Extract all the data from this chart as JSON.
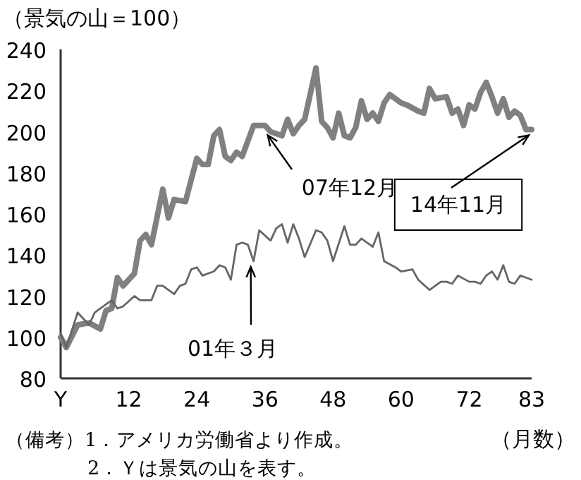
{
  "chart_data": {
    "type": "line",
    "ylabel": "（景気の山＝100）",
    "xlabel": "（月数）",
    "xlim": [
      0,
      83
    ],
    "ylim": [
      80,
      240
    ],
    "xticks": [
      {
        "value": 0,
        "label": "Y"
      },
      12,
      24,
      36,
      48,
      60,
      72,
      83
    ],
    "yticks": [
      80,
      100,
      120,
      140,
      160,
      180,
      200,
      220,
      240
    ],
    "grid": false,
    "legend": false,
    "marker": "none",
    "line_style": "solid",
    "series": [
      {
        "color": "#808080",
        "x": [
          0,
          1,
          3,
          5,
          7,
          8,
          9,
          10,
          11,
          12,
          13,
          14,
          15,
          16,
          18,
          19,
          20,
          22,
          24,
          25,
          26,
          27,
          28,
          29,
          30,
          31,
          32,
          34,
          36,
          37,
          39,
          40,
          41,
          42,
          43,
          45,
          46,
          47,
          48,
          49,
          50,
          51,
          52,
          53,
          54,
          55,
          56,
          57,
          58,
          60,
          61,
          63,
          64,
          65,
          66,
          68,
          69,
          70,
          71,
          72,
          73,
          74,
          75,
          76,
          77,
          78,
          79,
          80,
          81,
          82,
          83
        ],
        "values": [
          100,
          95,
          106,
          107,
          104,
          113,
          114,
          129,
          125,
          128,
          131,
          147,
          150,
          145,
          172,
          158,
          167,
          166,
          187,
          184,
          184,
          198,
          201,
          188,
          186,
          190,
          188,
          203,
          203,
          200,
          198,
          206,
          199,
          203,
          206,
          231,
          205,
          202,
          197,
          209,
          198,
          197,
          202,
          215,
          206,
          209,
          205,
          214,
          218,
          214,
          213,
          210,
          209,
          221,
          216,
          217,
          209,
          211,
          203,
          213,
          211,
          219,
          224,
          217,
          209,
          216,
          207,
          210,
          208,
          201,
          201
        ]
      },
      {
        "color": "#666666",
        "x": [
          0,
          1,
          3,
          4,
          5,
          6,
          7,
          9,
          10,
          11,
          13,
          14,
          16,
          17,
          18,
          20,
          21,
          22,
          23,
          24,
          25,
          27,
          28,
          29,
          30,
          31,
          32,
          33,
          34,
          35,
          37,
          38,
          39,
          40,
          41,
          42,
          43,
          45,
          46,
          47,
          48,
          50,
          51,
          52,
          53,
          55,
          56,
          57,
          59,
          60,
          62,
          63,
          65,
          67,
          68,
          69,
          70,
          72,
          73,
          74,
          75,
          76,
          77,
          78,
          79,
          80,
          81,
          82,
          83
        ],
        "values": [
          102,
          95,
          112,
          109,
          106,
          112,
          114,
          118,
          114,
          115,
          120,
          118,
          118,
          125,
          125,
          121,
          125,
          126,
          133,
          134,
          130,
          132,
          135,
          134,
          128,
          145,
          146,
          145,
          137,
          152,
          147,
          153,
          155,
          146,
          155,
          148,
          139,
          152,
          151,
          147,
          137,
          154,
          145,
          145,
          148,
          144,
          151,
          137,
          134,
          132,
          133,
          128,
          123,
          127,
          127,
          126,
          130,
          127,
          127,
          126,
          130,
          132,
          128,
          135,
          127,
          126,
          130,
          129,
          128
        ]
      }
    ],
    "annotations": [
      {
        "text": "07年12月",
        "x": 36,
        "y": 201
      },
      {
        "text": "01年３月",
        "x": 34,
        "y": 137
      },
      {
        "text": "14年11月",
        "x": 83,
        "y": 201
      },
      "（備考）1．アメリカ労働省より作成。",
      "2．Ｙは景気の山を表す。"
    ]
  }
}
